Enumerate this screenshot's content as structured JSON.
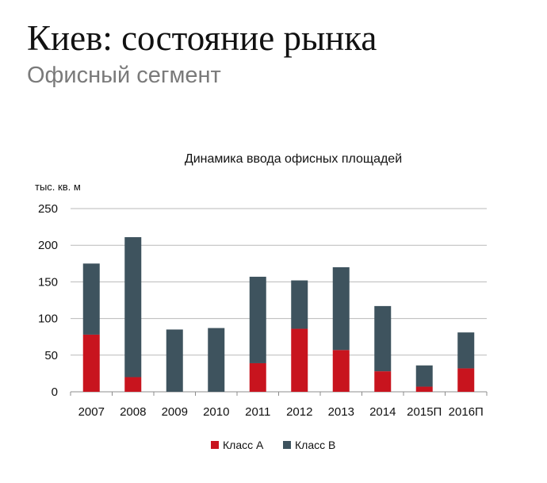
{
  "slide": {
    "title": "Киев: состояние рынка",
    "subtitle": "Офисный сегмент"
  },
  "colors": {
    "class_a": "#c8141e",
    "class_b": "#3e535e",
    "grid": "#b9b9b9",
    "axis": "#8c8c8c"
  },
  "chart_data": {
    "type": "bar",
    "stacked": true,
    "title": "Динамика ввода офисных площадей",
    "ylabel": "тыс. кв. м",
    "xlabel": "",
    "ylim": [
      0,
      250
    ],
    "yticks": [
      0,
      50,
      100,
      150,
      200,
      250
    ],
    "grid": true,
    "legend_position": "bottom",
    "categories": [
      "2007",
      "2008",
      "2009",
      "2010",
      "2011",
      "2012",
      "2013",
      "2014",
      "2015П",
      "2016П"
    ],
    "series": [
      {
        "name": "Класс А",
        "color": "#c8141e",
        "values": [
          78,
          20,
          0,
          0,
          39,
          86,
          57,
          28,
          7,
          32
        ]
      },
      {
        "name": "Класс В",
        "color": "#3e535e",
        "values": [
          97,
          191,
          85,
          87,
          118,
          66,
          113,
          89,
          29,
          49
        ]
      }
    ]
  }
}
